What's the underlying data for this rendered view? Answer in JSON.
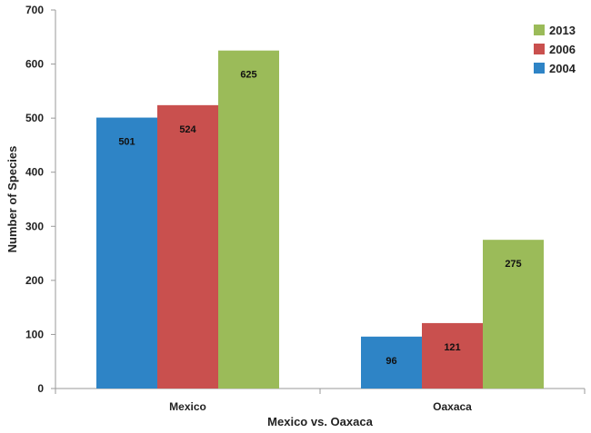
{
  "chart_data": {
    "type": "bar",
    "title": "",
    "xlabel": "Mexico vs. Oaxaca",
    "ylabel": "Number of Species",
    "ylim": [
      0,
      700
    ],
    "yticks": [
      0,
      100,
      200,
      300,
      400,
      500,
      600,
      700
    ],
    "categories": [
      "Mexico",
      "Oaxaca"
    ],
    "series": [
      {
        "name": "2004",
        "color": "#2e84c6",
        "values": [
          501,
          96
        ]
      },
      {
        "name": "2006",
        "color": "#c9504e",
        "values": [
          524,
          121
        ]
      },
      {
        "name": "2013",
        "color": "#9bbb59",
        "values": [
          625,
          275
        ]
      }
    ],
    "legend": {
      "position": "top-right",
      "order": [
        "2013",
        "2006",
        "2004"
      ]
    },
    "grid": false
  }
}
